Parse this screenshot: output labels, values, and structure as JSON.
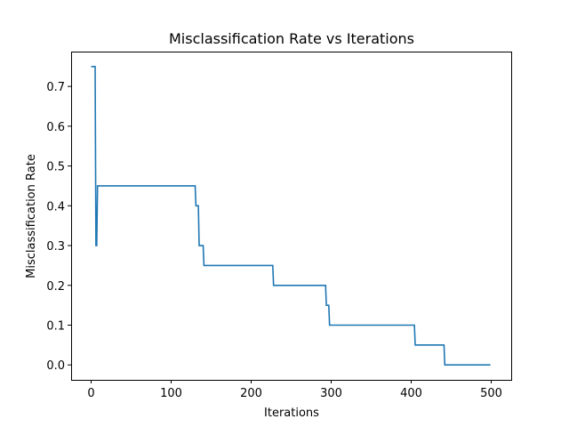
{
  "chart_data": {
    "type": "line",
    "title": "Misclassification Rate vs Iterations",
    "xlabel": "Iterations",
    "ylabel": "Misclassification Rate",
    "xlim": [
      -25,
      525
    ],
    "ylim": [
      -0.0375,
      0.7875
    ],
    "xticks": [
      0,
      100,
      200,
      300,
      400,
      500
    ],
    "xtick_labels": [
      "0",
      "100",
      "200",
      "300",
      "400",
      "500"
    ],
    "yticks": [
      0.0,
      0.1,
      0.2,
      0.3,
      0.4,
      0.5,
      0.6,
      0.7
    ],
    "ytick_labels": [
      "0.0",
      "0.1",
      "0.2",
      "0.3",
      "0.4",
      "0.5",
      "0.6",
      "0.7"
    ],
    "grid": false,
    "color": "#1f77b4",
    "series": [
      {
        "x": [
          0,
          5,
          6,
          7,
          8,
          9,
          130,
          131,
          134,
          135,
          140,
          141,
          143,
          144,
          227,
          228,
          293,
          294,
          297,
          298,
          404,
          405,
          441,
          442,
          499
        ],
        "y": [
          0.75,
          0.75,
          0.3,
          0.3,
          0.45,
          0.45,
          0.45,
          0.4,
          0.4,
          0.3,
          0.3,
          0.25,
          0.25,
          0.25,
          0.25,
          0.2,
          0.2,
          0.15,
          0.15,
          0.1,
          0.1,
          0.05,
          0.05,
          0.0,
          0.0
        ]
      }
    ]
  }
}
